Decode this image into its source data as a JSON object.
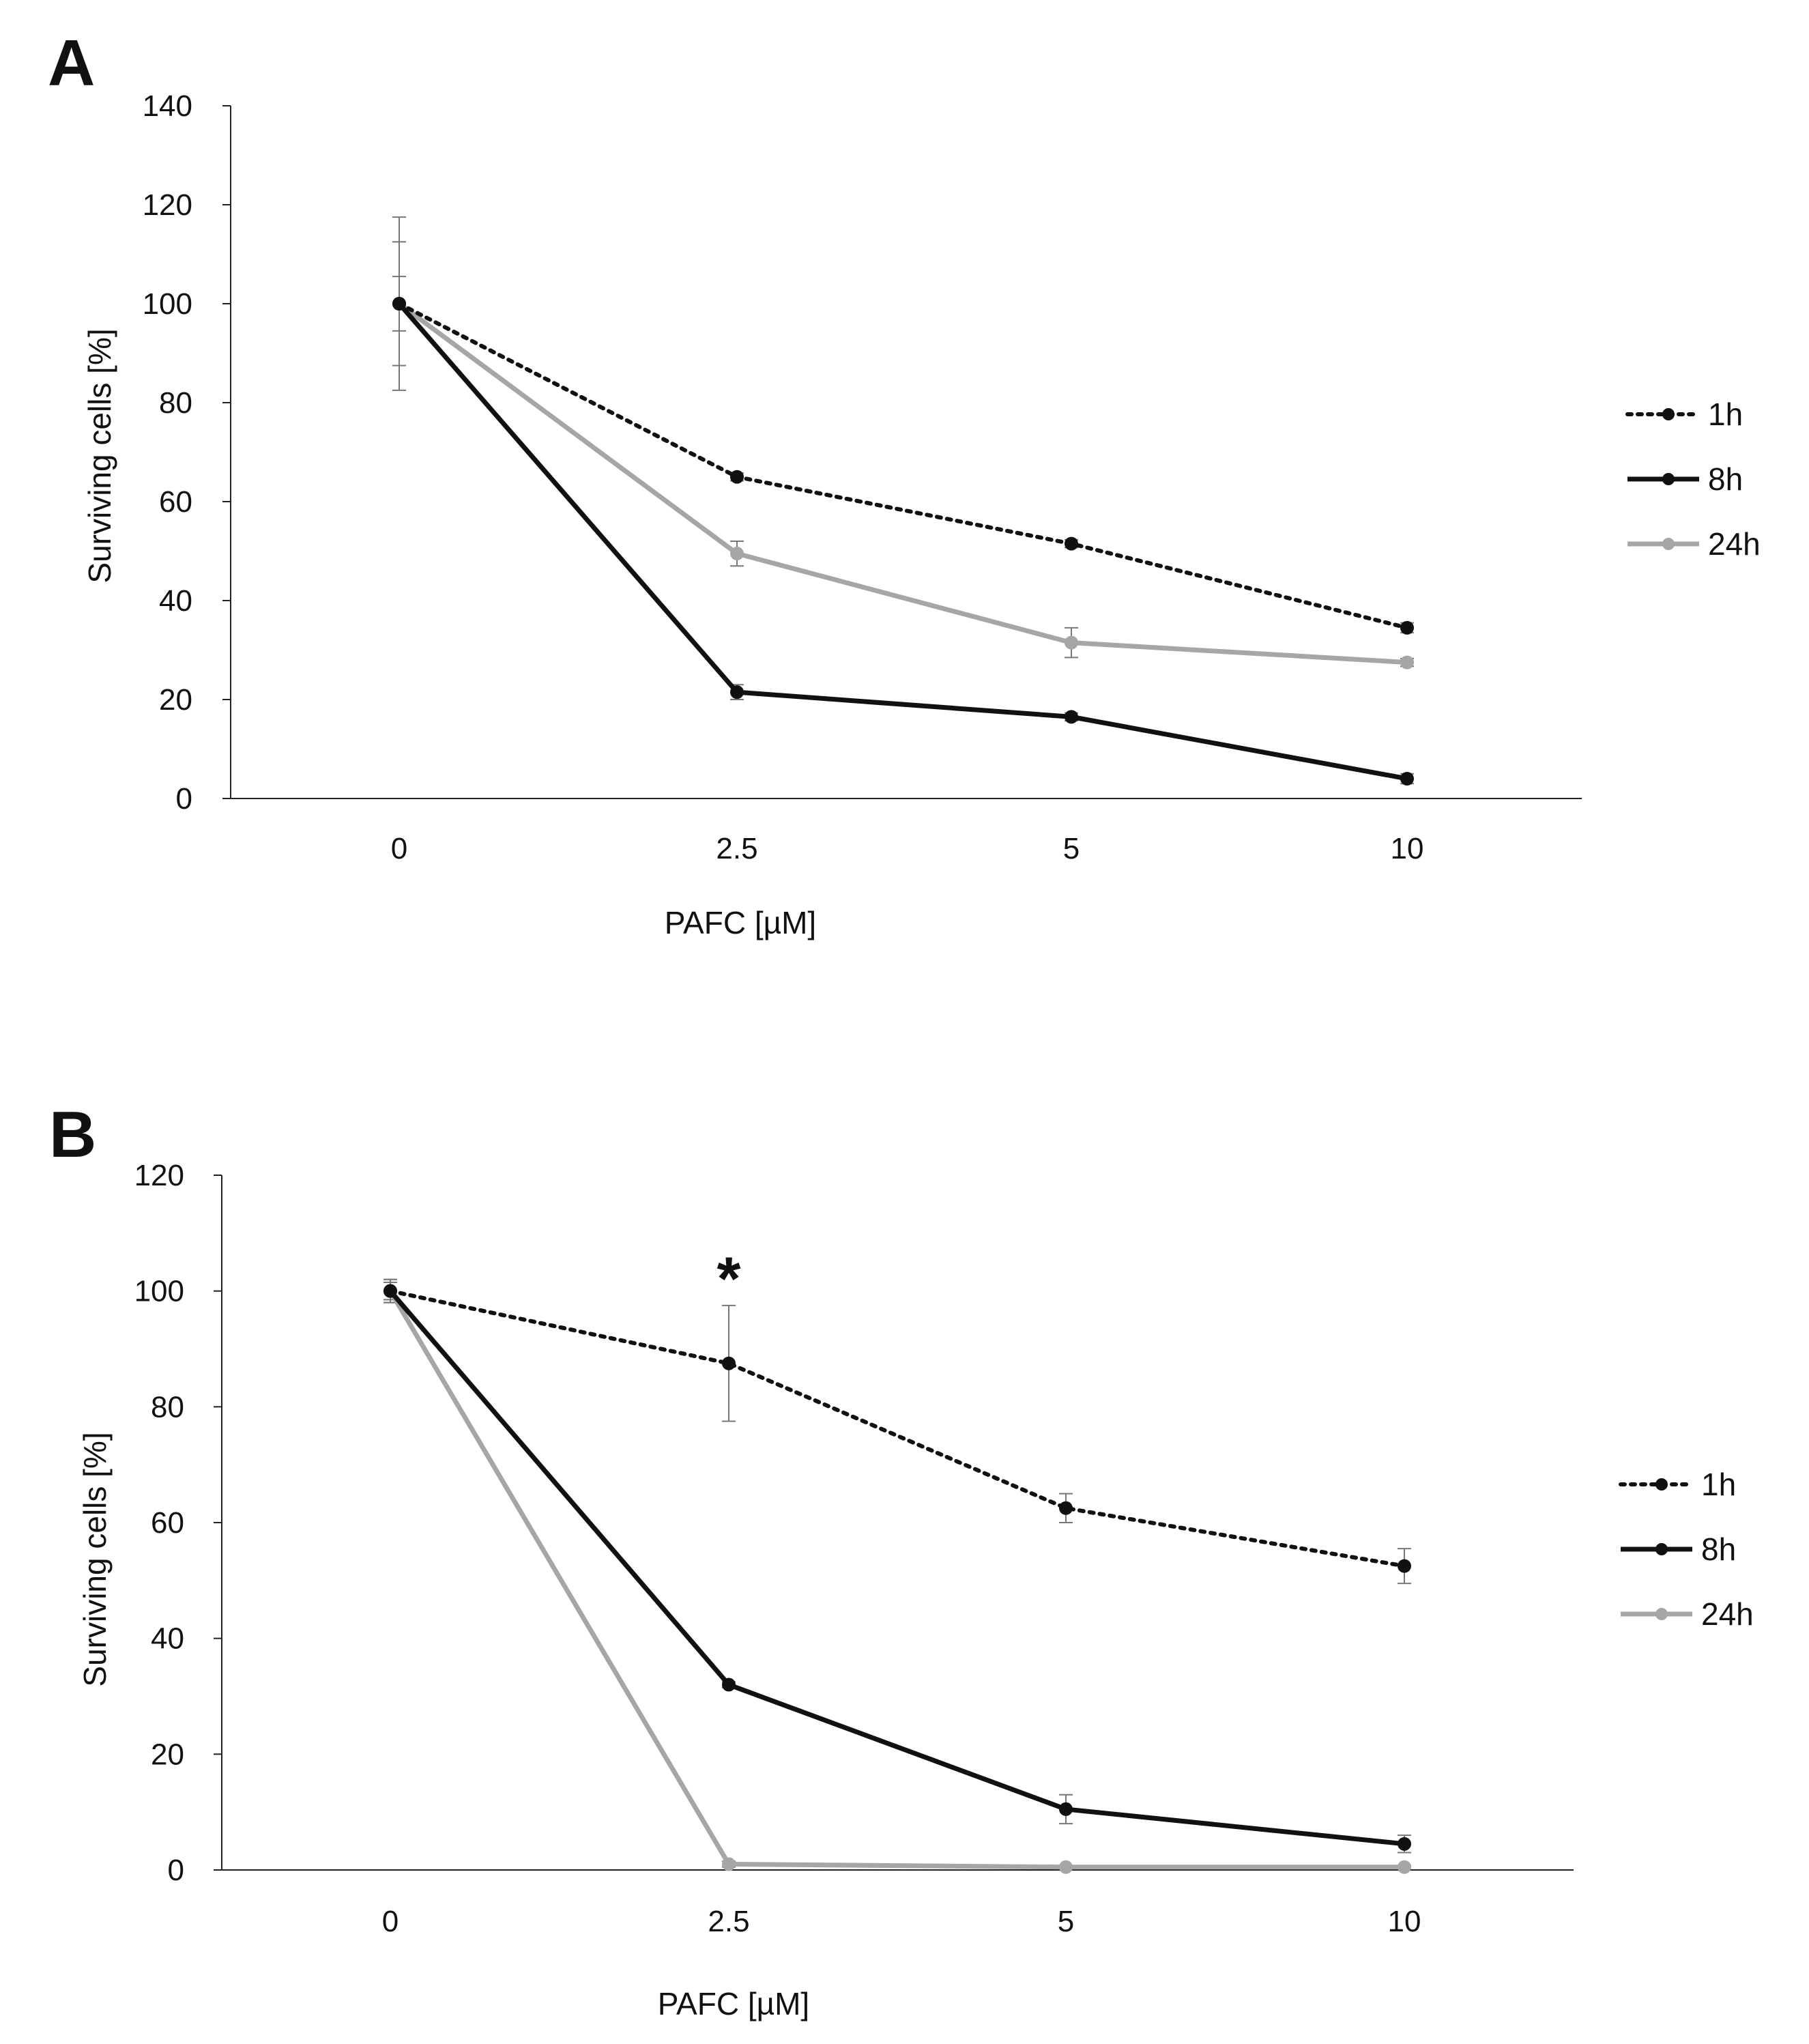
{
  "chart_data": [
    {
      "type": "line",
      "panel": "A",
      "title": "",
      "xlabel": "PAFC [µM]",
      "ylabel": "Surviving cells [%]",
      "categories": [
        "0",
        "2.5",
        "5",
        "10"
      ],
      "ylim": [
        0,
        140
      ],
      "yticks": [
        0,
        20,
        40,
        60,
        80,
        100,
        120,
        140
      ],
      "grid": false,
      "legend_position": "right",
      "series": [
        {
          "name": "1h",
          "color": "#111111",
          "style": "dotted",
          "values": [
            100,
            65,
            51.5,
            34.5
          ],
          "errors": [
            5.5,
            0.8,
            0.8,
            1.0
          ]
        },
        {
          "name": "8h",
          "color": "#111111",
          "style": "solid",
          "values": [
            100,
            21.5,
            16.5,
            4
          ],
          "errors": [
            17.5,
            1.5,
            0.8,
            1.0
          ]
        },
        {
          "name": "24h",
          "color": "#a6a6a6",
          "style": "solid",
          "values": [
            100,
            49.5,
            31.5,
            27.5
          ],
          "errors": [
            12.5,
            2.5,
            3.0,
            0.8
          ]
        }
      ]
    },
    {
      "type": "line",
      "panel": "B",
      "title": "",
      "xlabel": "PAFC [µM]",
      "ylabel": "Surviving cells [%]",
      "categories": [
        "0",
        "2.5",
        "5",
        "10"
      ],
      "ylim": [
        0,
        120
      ],
      "yticks": [
        0,
        20,
        40,
        60,
        80,
        100,
        120
      ],
      "grid": false,
      "legend_position": "right",
      "annotations": [
        {
          "text": "*",
          "category": "2.5",
          "y": 102
        }
      ],
      "series": [
        {
          "name": "1h",
          "color": "#111111",
          "style": "dotted",
          "values": [
            100,
            87.5,
            62.5,
            52.5
          ],
          "errors": [
            2.0,
            10.0,
            2.5,
            3.0
          ]
        },
        {
          "name": "8h",
          "color": "#111111",
          "style": "solid",
          "values": [
            100,
            32,
            10.5,
            4.5
          ],
          "errors": [
            1.5,
            0.5,
            2.5,
            1.5
          ]
        },
        {
          "name": "24h",
          "color": "#a6a6a6",
          "style": "solid",
          "values": [
            100,
            1,
            0.5,
            0.5
          ],
          "errors": [
            2.0,
            0.5,
            0.3,
            0.3
          ]
        }
      ]
    }
  ]
}
